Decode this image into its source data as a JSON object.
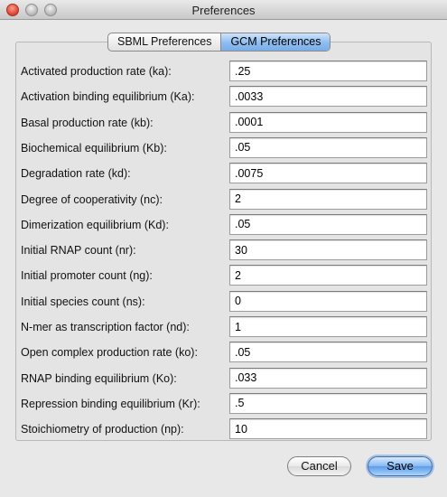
{
  "window": {
    "title": "Preferences"
  },
  "tabs": [
    {
      "label": "SBML Preferences",
      "active": false
    },
    {
      "label": "GCM Preferences",
      "active": true
    }
  ],
  "fields": [
    {
      "label": "Activated production rate (ka):",
      "value": ".25"
    },
    {
      "label": "Activation binding equilibrium (Ka):",
      "value": ".0033"
    },
    {
      "label": "Basal production rate (kb):",
      "value": ".0001"
    },
    {
      "label": "Biochemical equilibrium (Kb):",
      "value": ".05"
    },
    {
      "label": "Degradation rate (kd):",
      "value": ".0075"
    },
    {
      "label": "Degree of cooperativity (nc):",
      "value": "2"
    },
    {
      "label": "Dimerization equilibrium (Kd):",
      "value": ".05"
    },
    {
      "label": "Initial RNAP count (nr):",
      "value": "30"
    },
    {
      "label": "Initial promoter count (ng):",
      "value": "2"
    },
    {
      "label": "Initial species count (ns):",
      "value": "0"
    },
    {
      "label": "N-mer as transcription factor (nd):",
      "value": "1"
    },
    {
      "label": "Open complex production rate (ko):",
      "value": ".05"
    },
    {
      "label": "RNAP binding equilibrium (Ko):",
      "value": ".033"
    },
    {
      "label": "Repression binding equilibrium (Kr):",
      "value": ".5"
    },
    {
      "label": "Stoichiometry of production (np):",
      "value": "10"
    }
  ],
  "buttons": {
    "cancel": "Cancel",
    "save": "Save"
  }
}
